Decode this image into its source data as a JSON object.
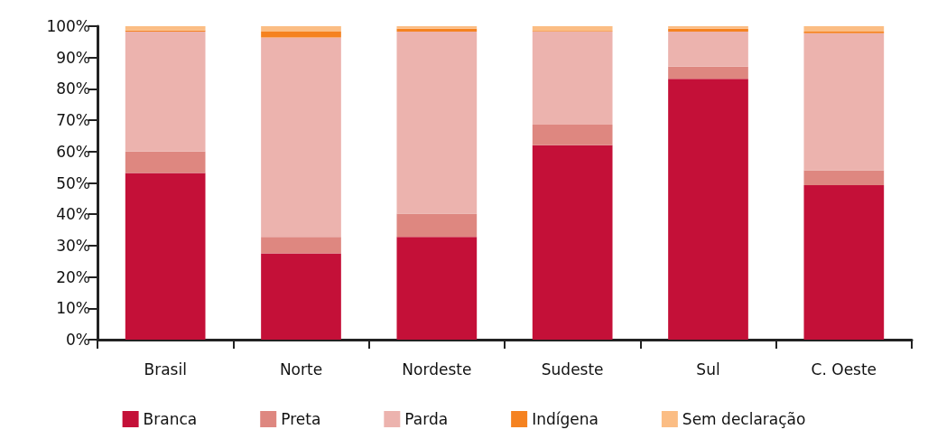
{
  "chart_data": {
    "type": "bar",
    "stacked": true,
    "categories": [
      "Brasil",
      "Norte",
      "Nordeste",
      "Sudeste",
      "Sul",
      "C. Oeste"
    ],
    "series": [
      {
        "name": "Branca",
        "color": "#c41038",
        "values": [
          53.2,
          27.5,
          32.8,
          62.0,
          83.2,
          49.3
        ]
      },
      {
        "name": "Preta",
        "color": "#de8780",
        "values": [
          6.8,
          5.3,
          7.4,
          6.6,
          3.9,
          4.7
        ]
      },
      {
        "name": "Parda",
        "color": "#ecb3ae",
        "values": [
          38.3,
          63.6,
          58.1,
          29.7,
          11.2,
          43.8
        ]
      },
      {
        "name": "Indígena",
        "color": "#f58220",
        "values": [
          0.3,
          1.9,
          0.9,
          0.2,
          0.9,
          0.5
        ]
      },
      {
        "name": "Sem declaração",
        "color": "#fbbd84",
        "values": [
          1.4,
          1.7,
          0.8,
          1.5,
          0.8,
          1.7
        ]
      }
    ],
    "ylim": [
      0,
      100
    ],
    "yticks": [
      {
        "value": 0,
        "label": "0%"
      },
      {
        "value": 10,
        "label": "10%"
      },
      {
        "value": 20,
        "label": "20%"
      },
      {
        "value": 30,
        "label": "30%"
      },
      {
        "value": 40,
        "label": "40%"
      },
      {
        "value": 50,
        "label": "50%"
      },
      {
        "value": 60,
        "label": "60%"
      },
      {
        "value": 70,
        "label": "70%"
      },
      {
        "value": 80,
        "label": "80%"
      },
      {
        "value": 90,
        "label": "90%"
      },
      {
        "value": 100,
        "label": "100%"
      }
    ],
    "grid": false,
    "legend": "bottom"
  }
}
